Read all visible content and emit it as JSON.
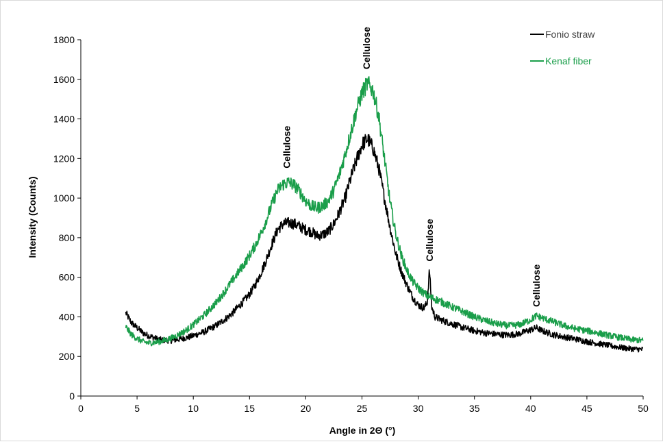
{
  "chart_data": {
    "type": "line",
    "xlabel": "Angle in 2Θ (°)",
    "ylabel": "Intensity (Counts)",
    "xlim": [
      0,
      50
    ],
    "ylim": [
      0,
      1800
    ],
    "x_ticks": [
      0,
      5,
      10,
      15,
      20,
      25,
      30,
      35,
      40,
      45,
      50
    ],
    "y_ticks": [
      0,
      200,
      400,
      600,
      800,
      1000,
      1200,
      1400,
      1600,
      1800
    ],
    "grid": false,
    "legend_position": "top-right",
    "series": [
      {
        "name": "Fonio straw",
        "color": "#000000",
        "x": [
          4,
          4.5,
          5,
          5.5,
          6,
          6.5,
          7,
          7.5,
          8,
          8.5,
          9,
          9.5,
          10,
          10.5,
          11,
          11.5,
          12,
          12.5,
          13,
          13.5,
          14,
          14.5,
          15,
          15.5,
          16,
          16.5,
          17,
          17.5,
          18,
          18.5,
          19,
          19.5,
          20,
          20.5,
          21,
          21.5,
          22,
          22.5,
          23,
          23.5,
          24,
          24.5,
          25,
          25.5,
          26,
          26.5,
          27,
          27.5,
          28,
          28.5,
          29,
          29.5,
          30,
          30.5,
          30.8,
          31,
          31.2,
          31.5,
          32,
          33,
          34,
          35,
          36,
          37,
          38,
          39,
          40,
          40.5,
          41,
          42,
          43,
          44,
          45,
          46,
          47,
          48,
          49,
          50
        ],
        "y": [
          420,
          370,
          345,
          320,
          305,
          295,
          285,
          282,
          280,
          285,
          290,
          296,
          305,
          315,
          325,
          340,
          355,
          375,
          395,
          420,
          450,
          480,
          515,
          560,
          620,
          690,
          770,
          840,
          870,
          875,
          870,
          855,
          840,
          830,
          810,
          815,
          830,
          870,
          930,
          1000,
          1100,
          1190,
          1270,
          1300,
          1250,
          1150,
          1000,
          850,
          720,
          630,
          560,
          500,
          460,
          445,
          470,
          640,
          450,
          400,
          385,
          365,
          345,
          330,
          318,
          312,
          308,
          315,
          335,
          345,
          330,
          310,
          298,
          288,
          275,
          265,
          255,
          245,
          238,
          235
        ]
      },
      {
        "name": "Kenaf fiber",
        "color": "#1a9e4a",
        "x": [
          4,
          4.5,
          5,
          5.5,
          6,
          6.5,
          7,
          7.5,
          8,
          8.5,
          9,
          9.5,
          10,
          10.5,
          11,
          11.5,
          12,
          12.5,
          13,
          13.5,
          14,
          14.5,
          15,
          15.5,
          16,
          16.5,
          17,
          17.5,
          18,
          18.5,
          19,
          19.5,
          20,
          20.5,
          21,
          21.5,
          22,
          22.5,
          23,
          23.5,
          24,
          24.5,
          25,
          25.5,
          26,
          26.5,
          27,
          27.5,
          28,
          28.5,
          29,
          29.5,
          30,
          30.5,
          31,
          31.5,
          32,
          33,
          34,
          35,
          36,
          37,
          38,
          39,
          40,
          40.5,
          41,
          42,
          43,
          44,
          45,
          46,
          47,
          48,
          49,
          50
        ],
        "y": [
          350,
          310,
          290,
          275,
          268,
          270,
          275,
          282,
          292,
          305,
          320,
          338,
          360,
          385,
          410,
          440,
          470,
          505,
          545,
          585,
          625,
          665,
          710,
          760,
          820,
          890,
          970,
          1040,
          1070,
          1080,
          1065,
          1030,
          985,
          960,
          950,
          960,
          985,
          1040,
          1120,
          1220,
          1330,
          1440,
          1530,
          1580,
          1540,
          1410,
          1200,
          980,
          820,
          710,
          635,
          580,
          545,
          520,
          500,
          490,
          478,
          450,
          425,
          400,
          380,
          365,
          355,
          360,
          385,
          405,
          395,
          375,
          355,
          340,
          330,
          318,
          305,
          295,
          285,
          280
        ]
      }
    ],
    "annotations": [
      {
        "text": "Cellulose",
        "x": 18.3,
        "y": 1150
      },
      {
        "text": "Cellulose",
        "x": 25.4,
        "y": 1650
      },
      {
        "text": "Cellulose",
        "x": 31.0,
        "y": 680
      },
      {
        "text": "Cellulose",
        "x": 40.5,
        "y": 450
      }
    ]
  }
}
